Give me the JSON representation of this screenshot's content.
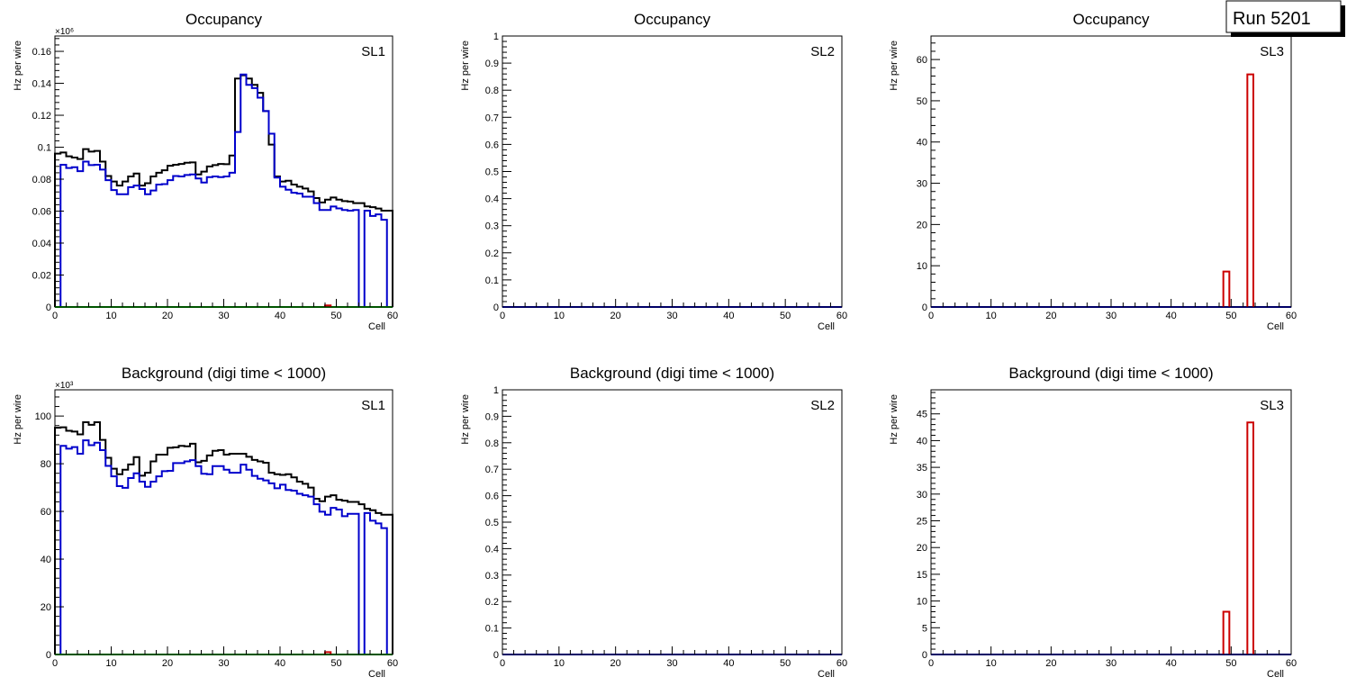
{
  "run_label": "Run 5201",
  "colors": {
    "total": "#000000",
    "series2": "#0000cc",
    "series3": "#00aa00",
    "series4": "#cc0000"
  },
  "chart_data": [
    {
      "type": "bar",
      "title": "Occupancy",
      "tag": "SL1",
      "xlabel": "Cell",
      "ylabel": "Hz per wire",
      "exponent": "×10⁶",
      "xlim": [
        0,
        60
      ],
      "ylim": [
        0,
        169.6
      ],
      "xticks": [
        0,
        10,
        20,
        30,
        40,
        50,
        60
      ],
      "xtick_labels": [
        "0",
        "10",
        "20",
        "30",
        "40",
        "50",
        "60"
      ],
      "yticks": [
        0,
        20,
        40,
        60,
        80,
        100,
        120,
        140,
        160
      ],
      "ytick_labels": [
        "0",
        "0.02",
        "0.04",
        "0.06",
        "0.08",
        "0.1",
        "0.12",
        "0.14",
        "0.16"
      ],
      "series": [
        {
          "name": "black",
          "color": "#000000",
          "values": [
            96,
            96.7,
            94.3,
            93.5,
            92.6,
            98.8,
            97.3,
            97.7,
            91,
            82,
            78.5,
            76,
            78.5,
            81.7,
            83.5,
            76,
            77.5,
            81.7,
            84,
            85.6,
            88.4,
            89,
            89.5,
            90.3,
            90.5,
            83,
            84.7,
            88,
            88.8,
            89.5,
            89.4,
            94.8,
            143,
            145,
            143,
            139,
            134,
            122.6,
            101.6,
            81.7,
            78.5,
            79,
            76.6,
            75.3,
            74.2,
            72.3,
            68.2,
            65.4,
            67.2,
            68.5,
            67.2,
            66.3,
            66,
            65,
            65,
            63,
            62.5,
            61.6,
            60.3,
            60.3
          ]
        },
        {
          "name": "blue",
          "color": "#0000cc",
          "values": [
            0,
            89,
            87,
            87.5,
            85,
            91,
            88.8,
            89,
            86,
            79.4,
            73.2,
            70.6,
            70.6,
            75,
            76,
            73.8,
            70.6,
            72.9,
            76.6,
            76.9,
            79.4,
            82,
            81.7,
            82.6,
            83,
            80.4,
            77.9,
            81.3,
            81.7,
            81.3,
            81.7,
            84,
            109.5,
            145.5,
            139,
            137,
            131,
            122.6,
            108.5,
            81,
            75.3,
            73.4,
            71.5,
            71,
            69,
            69,
            65,
            60.7,
            60.7,
            62.9,
            61.7,
            60.7,
            60.3,
            60.7,
            0,
            60.3,
            57,
            58,
            54.6,
            0
          ]
        },
        {
          "name": "green",
          "color": "#00aa00",
          "values": [
            0,
            0,
            0,
            0,
            0,
            0,
            0,
            0,
            0,
            0,
            0,
            0,
            0,
            0,
            0,
            0,
            0,
            0,
            0,
            0,
            0,
            0,
            0,
            0,
            0,
            0,
            0,
            0,
            0,
            0,
            0,
            0,
            0,
            0,
            0,
            0,
            0,
            0,
            0,
            0,
            0,
            0,
            0,
            0,
            0,
            0,
            0,
            0,
            0,
            0,
            0,
            0,
            0,
            0,
            0,
            0,
            0,
            0,
            0,
            0
          ]
        },
        {
          "name": "red",
          "color": "#cc0000",
          "bins": [
            48
          ],
          "values": [
            1
          ]
        }
      ]
    },
    {
      "type": "bar",
      "title": "Occupancy",
      "tag": "SL2",
      "xlabel": "Cell",
      "ylabel": "Hz per wire",
      "xlim": [
        0,
        60
      ],
      "ylim": [
        0,
        1
      ],
      "xticks": [
        0,
        10,
        20,
        30,
        40,
        50,
        60
      ],
      "xtick_labels": [
        "0",
        "10",
        "20",
        "30",
        "40",
        "50",
        "60"
      ],
      "yticks": [
        0,
        0.1,
        0.2,
        0.3,
        0.4,
        0.5,
        0.6,
        0.7,
        0.8,
        0.9,
        1
      ],
      "ytick_labels": [
        "0",
        "0.1",
        "0.2",
        "0.3",
        "0.4",
        "0.5",
        "0.6",
        "0.7",
        "0.8",
        "0.9",
        "1"
      ],
      "series": [
        {
          "name": "blue",
          "color": "#0000cc",
          "flat": 0
        }
      ]
    },
    {
      "type": "bar",
      "title": "Occupancy",
      "tag": "SL3",
      "xlabel": "Cell",
      "ylabel": "Hz per wire",
      "xlim": [
        0,
        60
      ],
      "ylim": [
        0,
        65.7
      ],
      "xticks": [
        0,
        10,
        20,
        30,
        40,
        50,
        60
      ],
      "xtick_labels": [
        "0",
        "10",
        "20",
        "30",
        "40",
        "50",
        "60"
      ],
      "yticks": [
        0,
        10,
        20,
        30,
        40,
        50,
        60
      ],
      "ytick_labels": [
        "0",
        "10",
        "20",
        "30",
        "40",
        "50",
        "60"
      ],
      "series": [
        {
          "name": "blue",
          "color": "#0000cc",
          "flat": 0
        },
        {
          "name": "red",
          "color": "#cc0000",
          "bins": [
            48.7,
            52.7
          ],
          "values": [
            8.6,
            56.4
          ]
        }
      ]
    },
    {
      "type": "bar",
      "title": "Background (digi time < 1000)",
      "tag": "SL1",
      "xlabel": "Cell",
      "ylabel": "Hz per wire",
      "exponent": "×10³",
      "xlim": [
        0,
        60
      ],
      "ylim": [
        0,
        111
      ],
      "xticks": [
        0,
        10,
        20,
        30,
        40,
        50,
        60
      ],
      "xtick_labels": [
        "0",
        "10",
        "20",
        "30",
        "40",
        "50",
        "60"
      ],
      "yticks": [
        0,
        20,
        40,
        60,
        80,
        100
      ],
      "ytick_labels": [
        "0",
        "20",
        "40",
        "60",
        "80",
        "100"
      ],
      "series": [
        {
          "name": "black",
          "color": "#000000",
          "values": [
            95.1,
            95.3,
            93.8,
            93.5,
            92.3,
            97.4,
            96.3,
            97.4,
            90,
            82.5,
            77.9,
            75.6,
            77.5,
            79.7,
            82.8,
            75,
            76.2,
            81,
            83.8,
            83.8,
            86.7,
            86.9,
            87.5,
            87.3,
            88.4,
            80.6,
            81.2,
            83.5,
            85.4,
            85.7,
            83.8,
            84.2,
            84.2,
            84.2,
            82.9,
            81.6,
            81,
            80.4,
            76.2,
            75.6,
            75.3,
            75.6,
            74.3,
            72.5,
            71.6,
            70,
            65.3,
            64.3,
            66.2,
            66.8,
            64.9,
            64.5,
            64,
            64,
            63,
            61.1,
            60.5,
            59.3,
            58.6,
            58.6
          ]
        },
        {
          "name": "blue",
          "color": "#0000cc",
          "values": [
            0,
            87.5,
            86.3,
            87,
            84.2,
            89.8,
            87.8,
            88.8,
            85.7,
            79.1,
            74.7,
            70.6,
            69.9,
            74,
            76,
            72.5,
            70.3,
            72.5,
            74.7,
            76.9,
            77,
            80.3,
            80.3,
            81,
            81.5,
            79,
            75.8,
            75.6,
            79,
            79,
            77.5,
            76.2,
            76.2,
            79.6,
            77.5,
            74.9,
            73.7,
            73,
            71.8,
            69.7,
            71.2,
            69,
            68.7,
            67.4,
            66.8,
            66.2,
            63,
            59.9,
            58.6,
            61.5,
            60.8,
            58,
            59,
            59,
            0,
            59.3,
            56.1,
            55,
            53,
            0
          ]
        },
        {
          "name": "green",
          "color": "#00aa00",
          "flat": 0
        },
        {
          "name": "red",
          "color": "#cc0000",
          "bins": [
            48
          ],
          "values": [
            1
          ]
        }
      ]
    },
    {
      "type": "bar",
      "title": "Background (digi time < 1000)",
      "tag": "SL2",
      "xlabel": "Cell",
      "ylabel": "Hz per wire",
      "xlim": [
        0,
        60
      ],
      "ylim": [
        0,
        1
      ],
      "xticks": [
        0,
        10,
        20,
        30,
        40,
        50,
        60
      ],
      "xtick_labels": [
        "0",
        "10",
        "20",
        "30",
        "40",
        "50",
        "60"
      ],
      "yticks": [
        0,
        0.1,
        0.2,
        0.3,
        0.4,
        0.5,
        0.6,
        0.7,
        0.8,
        0.9,
        1
      ],
      "ytick_labels": [
        "0",
        "0.1",
        "0.2",
        "0.3",
        "0.4",
        "0.5",
        "0.6",
        "0.7",
        "0.8",
        "0.9",
        "1"
      ],
      "series": [
        {
          "name": "blue",
          "color": "#0000cc",
          "flat": 0
        }
      ]
    },
    {
      "type": "bar",
      "title": "Background (digi time < 1000)",
      "tag": "SL3",
      "xlabel": "Cell",
      "ylabel": "Hz per wire",
      "xlim": [
        0,
        60
      ],
      "ylim": [
        0,
        49.5
      ],
      "xticks": [
        0,
        10,
        20,
        30,
        40,
        50,
        60
      ],
      "xtick_labels": [
        "0",
        "10",
        "20",
        "30",
        "40",
        "50",
        "60"
      ],
      "yticks": [
        0,
        5,
        10,
        15,
        20,
        25,
        30,
        35,
        40,
        45
      ],
      "ytick_labels": [
        "0",
        "5",
        "10",
        "15",
        "20",
        "25",
        "30",
        "35",
        "40",
        "45"
      ],
      "series": [
        {
          "name": "blue",
          "color": "#0000cc",
          "flat": 0
        },
        {
          "name": "red",
          "color": "#cc0000",
          "bins": [
            48.7,
            52.7
          ],
          "values": [
            8.0,
            43.4
          ]
        }
      ]
    }
  ]
}
